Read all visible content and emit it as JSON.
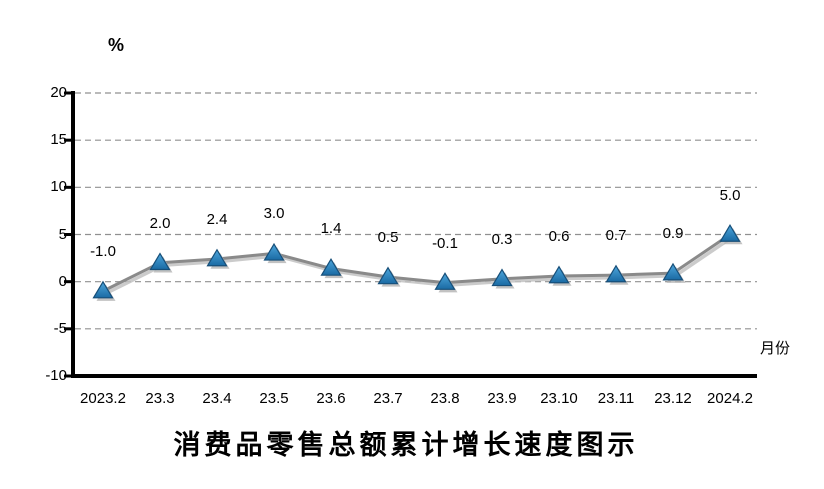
{
  "chart_data": {
    "type": "line",
    "title": "消费品零售总额累计增长速度图示",
    "y_unit_label": "%",
    "x_unit_label": "月份",
    "categories": [
      "2023.2",
      "23.3",
      "23.4",
      "23.5",
      "23.6",
      "23.7",
      "23.8",
      "23.9",
      "23.10",
      "23.11",
      "23.12",
      "2024.2"
    ],
    "values": [
      -1.0,
      2.0,
      2.4,
      3.0,
      1.4,
      0.5,
      -0.1,
      0.3,
      0.6,
      0.7,
      0.9,
      5.0
    ],
    "data_labels": [
      "-1.0",
      "2.0",
      "2.4",
      "3.0",
      "1.4",
      "0.5",
      "-0.1",
      "0.3",
      "0.6",
      "0.7",
      "0.9",
      "5.0"
    ],
    "ylim": [
      -10,
      20
    ],
    "yticks": [
      20,
      15,
      10,
      5,
      0,
      -5,
      -10
    ],
    "grid": "horizontal-dashed",
    "legend_position": "none",
    "marker": "triangle-up",
    "colors": {
      "line": "#8a8a8a",
      "line_shadow": "#c2c2c2",
      "marker_top": "#4da6dc",
      "marker_bottom": "#1a6aa3",
      "marker_stroke": "#174f79",
      "marker_shadow": "#b3b3b3",
      "grid": "#909090",
      "axis": "#000000",
      "text": "#000000"
    }
  }
}
